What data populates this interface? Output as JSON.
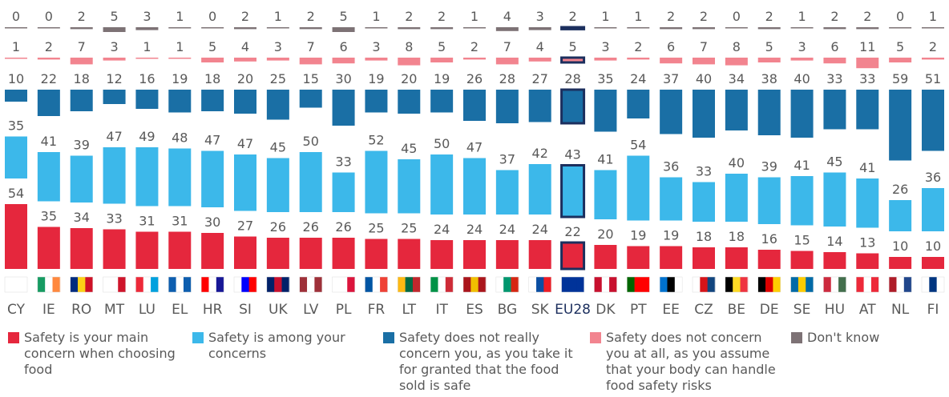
{
  "chart_data": {
    "type": "bar",
    "categories": [
      "CY",
      "IE",
      "RO",
      "MT",
      "LU",
      "EL",
      "HR",
      "SI",
      "UK",
      "LV",
      "PL",
      "FR",
      "LT",
      "IT",
      "ES",
      "BG",
      "SK",
      "EU28",
      "DK",
      "PT",
      "EE",
      "CZ",
      "BE",
      "DE",
      "SE",
      "HU",
      "AT",
      "NL",
      "FI"
    ],
    "series": [
      {
        "name": "Safety is your main concern when choosing food",
        "color": "#e5273d",
        "values": [
          54,
          35,
          34,
          33,
          31,
          31,
          30,
          27,
          26,
          26,
          26,
          25,
          25,
          24,
          24,
          24,
          24,
          22,
          20,
          19,
          19,
          18,
          18,
          16,
          15,
          14,
          13,
          10,
          10
        ]
      },
      {
        "name": "Safety is among your concerns",
        "color": "#3cb8ea",
        "values": [
          35,
          41,
          39,
          47,
          49,
          48,
          47,
          47,
          45,
          50,
          33,
          52,
          45,
          50,
          47,
          37,
          42,
          43,
          41,
          54,
          36,
          33,
          40,
          39,
          41,
          45,
          41,
          26,
          36
        ]
      },
      {
        "name": "Safety does not really concern you, as you take it for granted that the food sold is safe",
        "color": "#1a6fa5",
        "values": [
          10,
          22,
          18,
          12,
          16,
          19,
          18,
          20,
          25,
          15,
          30,
          19,
          20,
          19,
          26,
          28,
          27,
          28,
          35,
          24,
          37,
          40,
          34,
          38,
          40,
          33,
          33,
          59,
          51
        ]
      },
      {
        "name": "Safety does not concern you at all, as you assume that your body can handle food safety risks",
        "color": "#f2848f",
        "values": [
          1,
          2,
          7,
          3,
          1,
          1,
          5,
          4,
          3,
          7,
          6,
          3,
          8,
          5,
          2,
          7,
          4,
          5,
          3,
          2,
          6,
          7,
          8,
          5,
          3,
          6,
          11,
          5,
          2
        ]
      },
      {
        "name": "Don't know",
        "color": "#7d7275",
        "values": [
          0,
          0,
          2,
          5,
          3,
          1,
          0,
          2,
          1,
          2,
          5,
          1,
          2,
          2,
          1,
          4,
          3,
          2,
          1,
          1,
          2,
          2,
          0,
          2,
          1,
          2,
          2,
          0,
          1
        ]
      }
    ]
  }
}
